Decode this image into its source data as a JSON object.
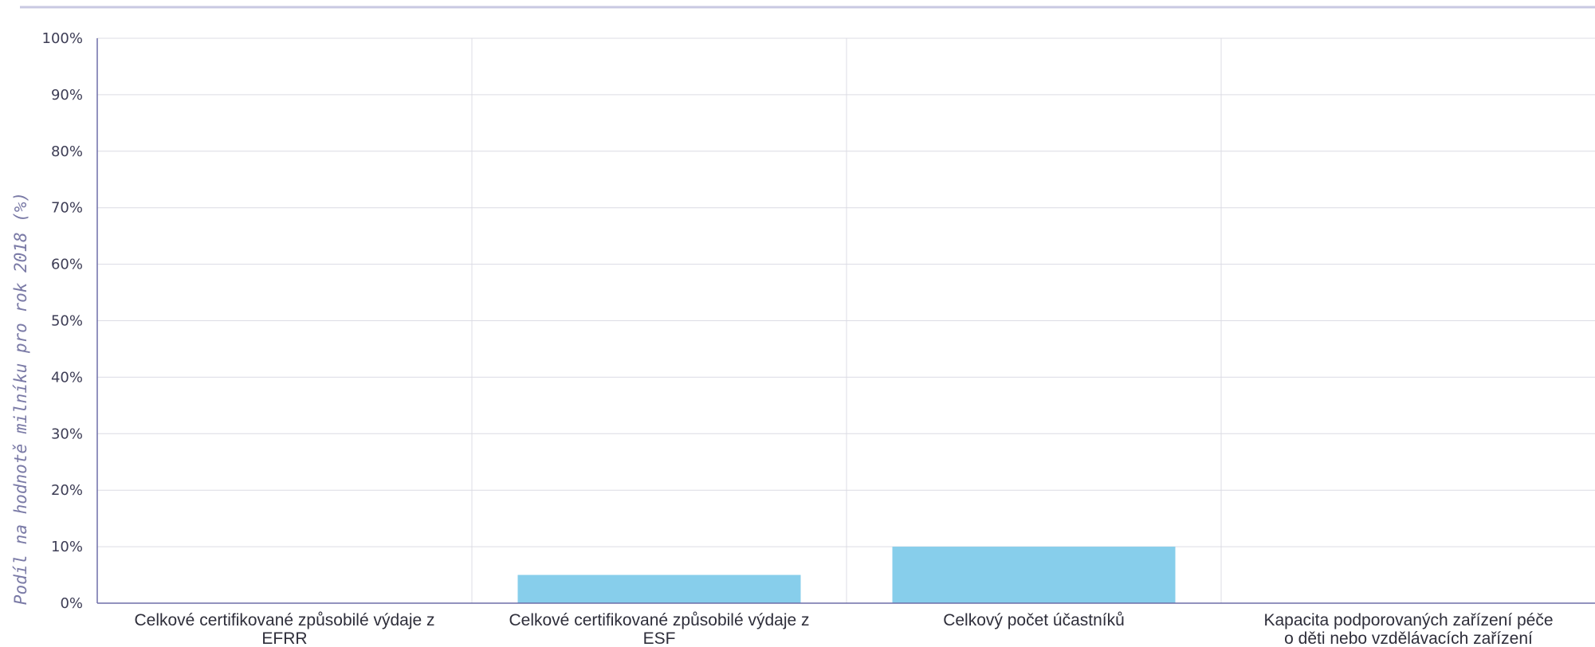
{
  "colors": {
    "bar": "#87ceeb",
    "axis": "#6f6fa8",
    "grid": "#dcdce4",
    "tick_text": "#3d3d55",
    "ylabel_text": "#7a7aa6",
    "top_rule": "#c9c9e2"
  },
  "chart_data": {
    "type": "bar",
    "title": "",
    "xlabel": "",
    "ylabel": "Podíl na hodnotě milníku pro rok 2018 (%)",
    "ylim": [
      0,
      100
    ],
    "yticks": [
      "0%",
      "10%",
      "20%",
      "30%",
      "40%",
      "50%",
      "60%",
      "70%",
      "80%",
      "90%",
      "100%"
    ],
    "grid": true,
    "categories": [
      [
        "Celkové certifikované způsobilé výdaje z",
        "EFRR"
      ],
      [
        "Celkové certifikované způsobilé výdaje z",
        "ESF"
      ],
      [
        "Celkový počet účastníků"
      ],
      [
        "Kapacita podporovaných zařízení péče",
        "o děti nebo vzdělávacích zařízení"
      ]
    ],
    "values": [
      0,
      5,
      10,
      0
    ]
  }
}
